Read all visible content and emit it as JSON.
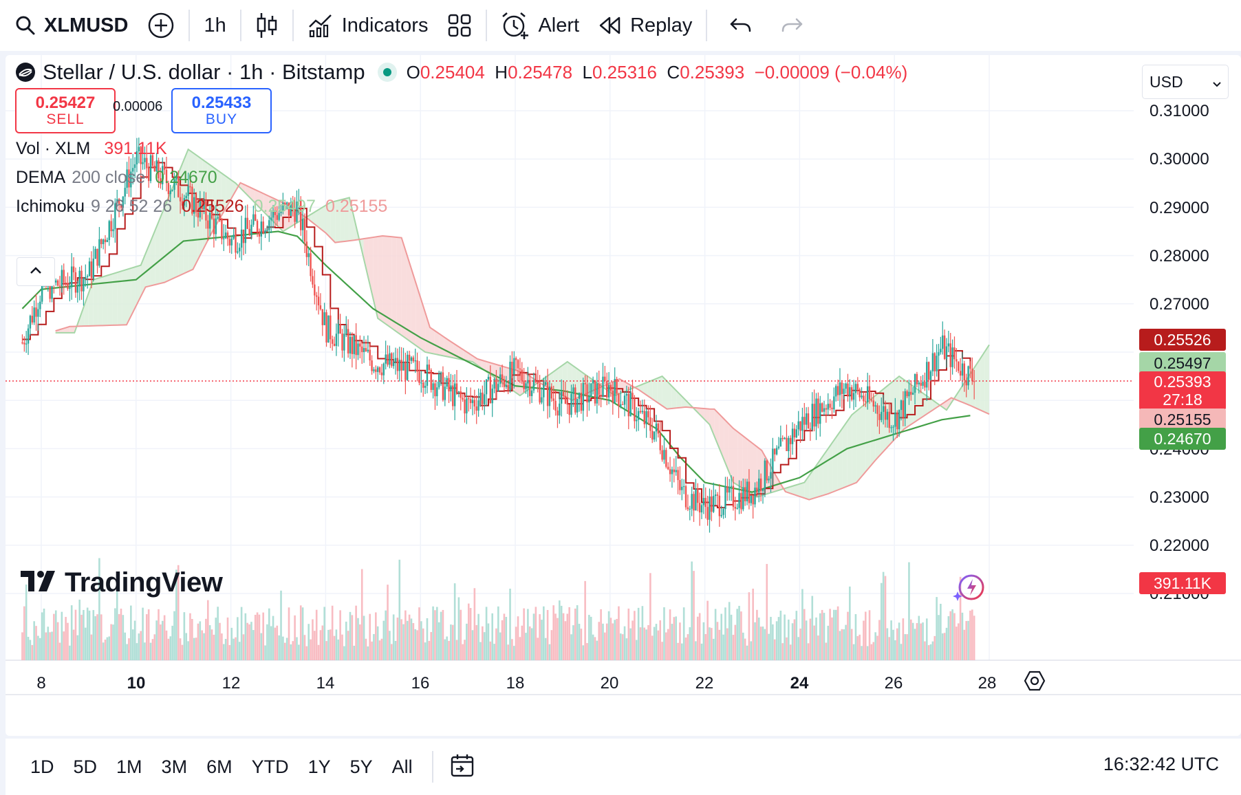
{
  "toolbar": {
    "symbol": "XLMUSD",
    "interval": "1h",
    "indicators_label": "Indicators",
    "alert_label": "Alert",
    "replay_label": "Replay"
  },
  "legend": {
    "title": "Stellar / U.S. dollar · 1h · Bitstamp",
    "ohlc": {
      "o_label": "O",
      "o": "0.25404",
      "h_label": "H",
      "h": "0.25478",
      "l_label": "L",
      "l": "0.25316",
      "c_label": "C",
      "c": "0.25393",
      "change": "−0.00009 (−0.04%)"
    },
    "sell": {
      "price": "0.25427",
      "label": "SELL"
    },
    "spread": "0.00006",
    "buy": {
      "price": "0.25433",
      "label": "BUY"
    },
    "volume": {
      "name": "Vol · XLM",
      "value": "391.11K"
    },
    "dema": {
      "name": "DEMA",
      "params": "200 close",
      "value": "0.24670"
    },
    "ichimoku": {
      "name": "Ichimoku",
      "params": "9 26 52 26",
      "v1": "0.25526",
      "v2": "0.25497",
      "v3": "0.25155"
    }
  },
  "currency": "USD",
  "price_scale": [
    "0.31000",
    "0.30000",
    "0.29000",
    "0.28000",
    "0.27000",
    "0.24000",
    "0.23000",
    "0.22000",
    "0.21000"
  ],
  "price_tags": {
    "ichimoku_conversion": "0.25526",
    "ichimoku_base": "0.25497",
    "last_price": "0.25393",
    "countdown": "27:18",
    "ichimoku_span": "0.25155",
    "dema": "0.24670",
    "volume": "391.11K"
  },
  "time_axis": [
    "8",
    "10",
    "12",
    "14",
    "16",
    "18",
    "20",
    "22",
    "24",
    "26",
    "28"
  ],
  "logo_text": "TradingView",
  "ranges": [
    "1D",
    "5D",
    "1M",
    "3M",
    "6M",
    "YTD",
    "1Y",
    "5Y",
    "All"
  ],
  "clock": "16:32:42 UTC",
  "colors": {
    "up": "#089981",
    "down": "#f23645",
    "dema": "#43a047",
    "conversion": "#b71c1c",
    "base": "#a5d6a7",
    "cloud_red": "#f8d7d7",
    "cloud_green": "#dcefdc"
  },
  "chart_data": {
    "type": "line",
    "symbol": "XLMUSD",
    "interval": "1h",
    "ylim": [
      0.205,
      0.315
    ],
    "x_ticks": [
      "8",
      "10",
      "12",
      "14",
      "16",
      "18",
      "20",
      "22",
      "24",
      "26",
      "28"
    ],
    "x_days": [
      7.6,
      8,
      9,
      10,
      11,
      12,
      13,
      13.4,
      14,
      15,
      16,
      17,
      18,
      19,
      20,
      21,
      21.5,
      22,
      23,
      24,
      25,
      26,
      27,
      27.7
    ],
    "price": [
      0.262,
      0.273,
      0.276,
      0.3,
      0.293,
      0.283,
      0.289,
      0.29,
      0.265,
      0.258,
      0.256,
      0.249,
      0.256,
      0.249,
      0.253,
      0.243,
      0.231,
      0.228,
      0.231,
      0.245,
      0.253,
      0.246,
      0.261,
      0.254
    ],
    "dema": [
      0.269,
      0.273,
      0.274,
      0.275,
      0.283,
      0.284,
      0.285,
      0.284,
      0.278,
      0.269,
      0.263,
      0.258,
      0.253,
      0.252,
      0.25,
      0.244,
      0.238,
      0.233,
      0.231,
      0.234,
      0.24,
      0.243,
      0.246,
      0.247
    ],
    "volume_last": "391.11K",
    "last_price": 0.25393
  }
}
